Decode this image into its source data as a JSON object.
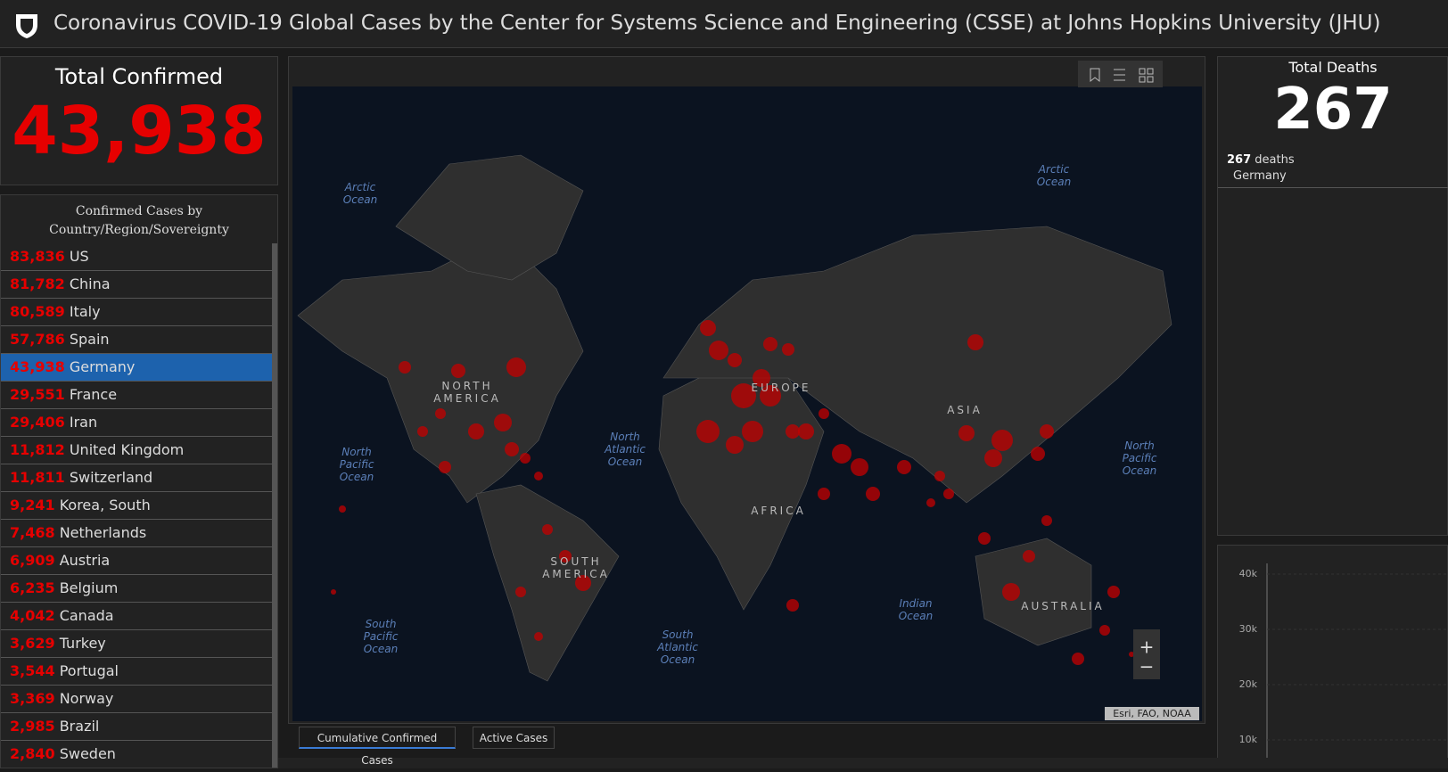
{
  "header": {
    "title": "Coronavirus COVID-19 Global Cases by the Center for Systems Science and Engineering (CSSE) at Johns Hopkins University (JHU)"
  },
  "total_confirmed": {
    "label": "Total Confirmed",
    "value": "43,938"
  },
  "country_list": {
    "title": "Confirmed Cases by Country/Region/Sovereignty",
    "selected": 4,
    "rows": [
      [
        "83,836",
        "US"
      ],
      [
        "81,782",
        "China"
      ],
      [
        "80,589",
        "Italy"
      ],
      [
        "57,786",
        "Spain"
      ],
      [
        "43,938",
        "Germany"
      ],
      [
        "29,551",
        "France"
      ],
      [
        "29,406",
        "Iran"
      ],
      [
        "11,812",
        "United Kingdom"
      ],
      [
        "11,811",
        "Switzerland"
      ],
      [
        "9,241",
        "Korea, South"
      ],
      [
        "7,468",
        "Netherlands"
      ],
      [
        "6,909",
        "Austria"
      ],
      [
        "6,235",
        "Belgium"
      ],
      [
        "4,042",
        "Canada"
      ],
      [
        "3,629",
        "Turkey"
      ],
      [
        "3,544",
        "Portugal"
      ],
      [
        "3,369",
        "Norway"
      ],
      [
        "2,985",
        "Brazil"
      ],
      [
        "2,840",
        "Sweden"
      ]
    ]
  },
  "map": {
    "labels": [
      [
        "Arctic",
        "Ocean"
      ],
      [
        "Arctic",
        "Ocean"
      ],
      [
        "NORTH",
        "AMERICA"
      ],
      [
        "North",
        "Atlantic",
        "Ocean"
      ],
      [
        "North",
        "Pacific",
        "Ocean"
      ],
      [
        "EUROPE"
      ],
      [
        "ASIA"
      ],
      [
        "North",
        "Pacific",
        "Ocean"
      ],
      [
        "AFRICA"
      ],
      [
        "SOUTH",
        "AMERICA"
      ],
      [
        "South",
        "Pacific",
        "Ocean"
      ],
      [
        "South",
        "Atlantic",
        "Ocean"
      ],
      [
        "Indian",
        "Ocean"
      ],
      [
        "AUSTRALIA"
      ]
    ],
    "attribution": "Esri, FAO, NOAA",
    "zoom_in": "+",
    "zoom_out": "−"
  },
  "tabs": [
    "Cumulative Confirmed Cases",
    "Active Cases"
  ],
  "total_deaths": {
    "label": "Total Deaths",
    "value": "267",
    "detail_count": "267",
    "detail_unit": "deaths",
    "detail_place": "Germany"
  },
  "mini_chart": {
    "yticks": [
      "40k",
      "30k",
      "20k",
      "10k"
    ]
  }
}
